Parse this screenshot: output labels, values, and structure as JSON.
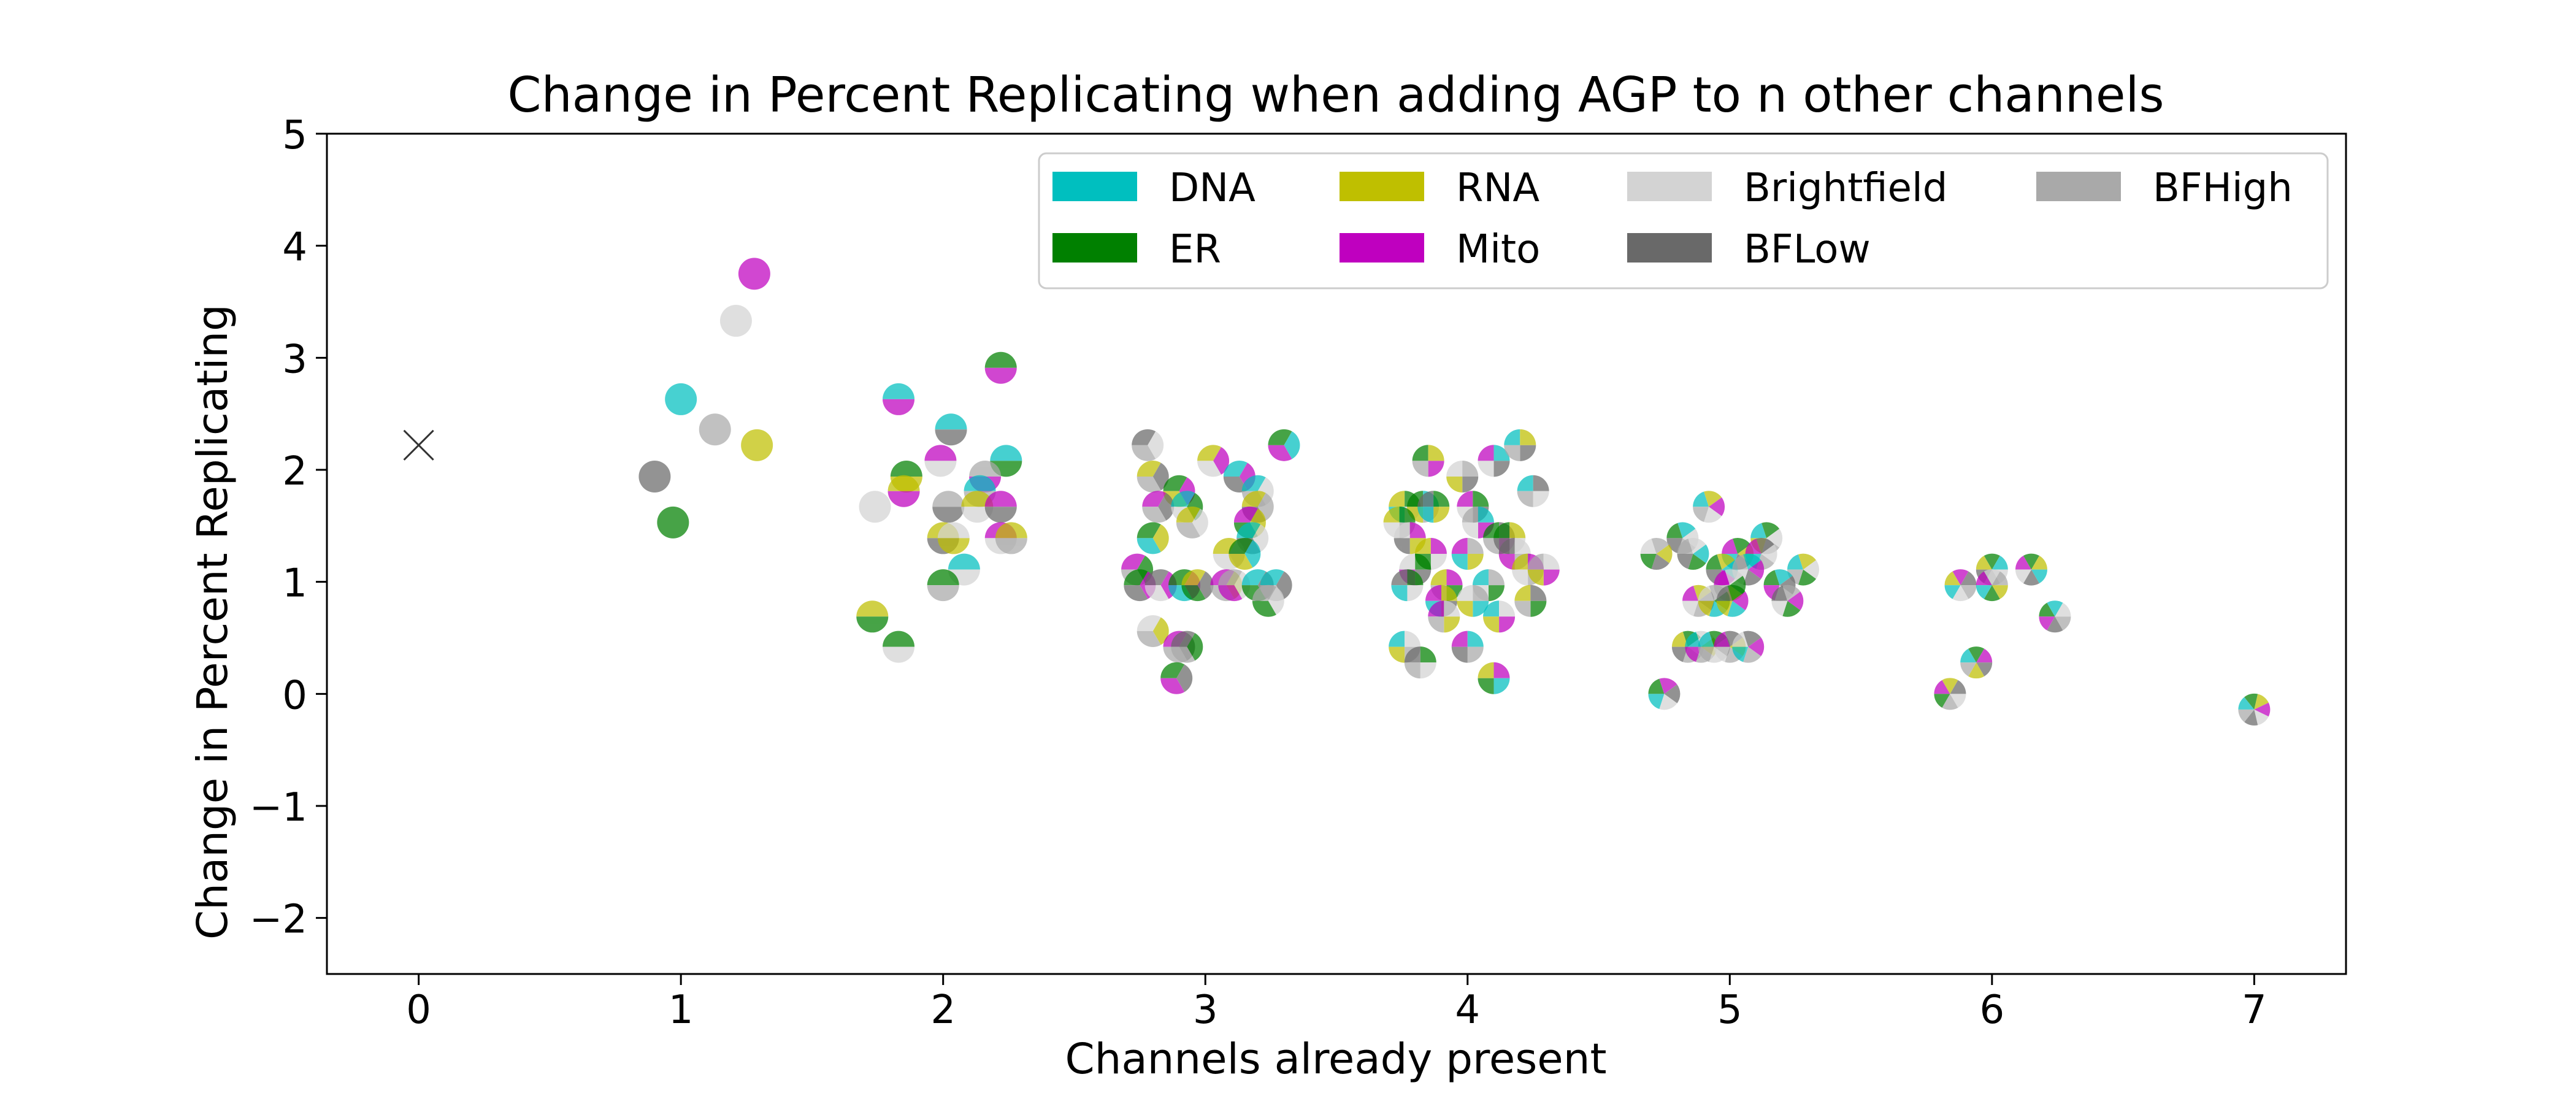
{
  "chart_data": {
    "type": "scatter",
    "title": "Change in Percent Replicating when adding AGP to n other channels",
    "xlabel": "Channels already present",
    "ylabel": "Change in Percent Replicating",
    "xlim": [
      -0.35,
      7.35
    ],
    "ylim": [
      -2.5,
      5
    ],
    "xticks": [
      0,
      1,
      2,
      3,
      4,
      5,
      6,
      7
    ],
    "yticks": [
      -2,
      -1,
      0,
      1,
      2,
      3,
      4,
      5
    ],
    "ytick_labels": [
      "−2",
      "−1",
      "0",
      "1",
      "2",
      "3",
      "4",
      "5"
    ],
    "grid": false,
    "legend_position": "top-right",
    "legend": [
      {
        "name": "DNA",
        "color": "#00bfbf"
      },
      {
        "name": "ER",
        "color": "#008000"
      },
      {
        "name": "RNA",
        "color": "#bfbf00"
      },
      {
        "name": "Mito",
        "color": "#bf00bf"
      },
      {
        "name": "Brightfield",
        "color": "#d3d3d3"
      },
      {
        "name": "BFLow",
        "color": "#696969"
      },
      {
        "name": "BFHigh",
        "color": "#a9a9a9"
      }
    ],
    "baseline_point": {
      "x": 0,
      "y": 2.22,
      "marker": "x"
    },
    "points": [
      {
        "x": 1.0,
        "y": 2.63,
        "channels": [
          "DNA"
        ]
      },
      {
        "x": 1.28,
        "y": 3.75,
        "channels": [
          "Mito"
        ]
      },
      {
        "x": 1.21,
        "y": 3.33,
        "channels": [
          "Brightfield"
        ]
      },
      {
        "x": 1.13,
        "y": 2.36,
        "channels": [
          "BFHigh"
        ]
      },
      {
        "x": 1.29,
        "y": 2.22,
        "channels": [
          "RNA"
        ]
      },
      {
        "x": 0.9,
        "y": 1.94,
        "channels": [
          "BFLow"
        ]
      },
      {
        "x": 0.97,
        "y": 1.53,
        "channels": [
          "ER"
        ]
      },
      {
        "x": 1.83,
        "y": 2.63,
        "channels": [
          "DNA",
          "Mito"
        ]
      },
      {
        "x": 2.22,
        "y": 2.91,
        "channels": [
          "ER",
          "Mito"
        ]
      },
      {
        "x": 2.03,
        "y": 2.36,
        "channels": [
          "DNA",
          "BFLow"
        ]
      },
      {
        "x": 1.99,
        "y": 2.08,
        "channels": [
          "Mito",
          "Brightfield"
        ]
      },
      {
        "x": 2.24,
        "y": 2.08,
        "channels": [
          "DNA",
          "ER"
        ]
      },
      {
        "x": 1.86,
        "y": 1.94,
        "channels": [
          "ER",
          "RNA"
        ]
      },
      {
        "x": 2.16,
        "y": 1.94,
        "channels": [
          "BFHigh",
          "Mito"
        ]
      },
      {
        "x": 2.14,
        "y": 1.81,
        "channels": [
          "DNA",
          "BFHigh"
        ]
      },
      {
        "x": 1.85,
        "y": 1.81,
        "channels": [
          "RNA",
          "Mito"
        ]
      },
      {
        "x": 1.74,
        "y": 1.67,
        "channels": [
          "Brightfield"
        ]
      },
      {
        "x": 2.02,
        "y": 1.67,
        "channels": [
          "BFHigh",
          "BFLow"
        ]
      },
      {
        "x": 2.13,
        "y": 1.67,
        "channels": [
          "RNA",
          "Brightfield"
        ]
      },
      {
        "x": 2.22,
        "y": 1.67,
        "channels": [
          "Mito",
          "BFLow"
        ]
      },
      {
        "x": 2.0,
        "y": 1.39,
        "channels": [
          "RNA",
          "BFLow"
        ]
      },
      {
        "x": 2.04,
        "y": 1.39,
        "channels": [
          "Brightfield",
          "RNA"
        ]
      },
      {
        "x": 2.22,
        "y": 1.39,
        "channels": [
          "Mito",
          "Brightfield"
        ]
      },
      {
        "x": 2.26,
        "y": 1.39,
        "channels": [
          "RNA",
          "BFHigh"
        ]
      },
      {
        "x": 2.08,
        "y": 1.11,
        "channels": [
          "DNA",
          "Brightfield"
        ]
      },
      {
        "x": 2.0,
        "y": 0.97,
        "channels": [
          "ER",
          "BFHigh"
        ]
      },
      {
        "x": 1.73,
        "y": 0.69,
        "channels": [
          "RNA",
          "ER"
        ]
      },
      {
        "x": 1.83,
        "y": 0.42,
        "channels": [
          "ER",
          "Brightfield"
        ]
      },
      {
        "x": 2.78,
        "y": 2.22,
        "channels": [
          "BFLow",
          "Brightfield",
          "BFHigh"
        ]
      },
      {
        "x": 3.3,
        "y": 2.22,
        "channels": [
          "ER",
          "DNA",
          "Mito"
        ]
      },
      {
        "x": 3.03,
        "y": 2.08,
        "channels": [
          "RNA",
          "Mito",
          "Brightfield"
        ]
      },
      {
        "x": 3.13,
        "y": 1.94,
        "channels": [
          "DNA",
          "Mito",
          "BFLow"
        ]
      },
      {
        "x": 2.8,
        "y": 1.94,
        "channels": [
          "RNA",
          "BFLow",
          "BFHigh"
        ]
      },
      {
        "x": 2.9,
        "y": 1.81,
        "channels": [
          "ER",
          "Mito",
          "RNA"
        ]
      },
      {
        "x": 3.2,
        "y": 1.81,
        "channels": [
          "DNA",
          "Brightfield",
          "BFHigh"
        ]
      },
      {
        "x": 2.82,
        "y": 1.67,
        "channels": [
          "Mito",
          "BFLow",
          "BFHigh"
        ]
      },
      {
        "x": 2.93,
        "y": 1.67,
        "channels": [
          "DNA",
          "ER",
          "Brightfield"
        ]
      },
      {
        "x": 3.2,
        "y": 1.67,
        "channels": [
          "RNA",
          "BFHigh",
          "BFLow"
        ]
      },
      {
        "x": 2.95,
        "y": 1.53,
        "channels": [
          "RNA",
          "Brightfield",
          "BFHigh"
        ]
      },
      {
        "x": 3.17,
        "y": 1.53,
        "channels": [
          "Mito",
          "RNA",
          "ER"
        ]
      },
      {
        "x": 2.8,
        "y": 1.39,
        "channels": [
          "ER",
          "RNA",
          "DNA"
        ]
      },
      {
        "x": 3.18,
        "y": 1.39,
        "channels": [
          "DNA",
          "Brightfield",
          "BFLow"
        ]
      },
      {
        "x": 3.09,
        "y": 1.25,
        "channels": [
          "RNA",
          "BFHigh",
          "Brightfield"
        ]
      },
      {
        "x": 3.15,
        "y": 1.25,
        "channels": [
          "ER",
          "DNA",
          "RNA"
        ]
      },
      {
        "x": 2.74,
        "y": 1.11,
        "channels": [
          "Mito",
          "ER",
          "BFHigh"
        ]
      },
      {
        "x": 2.75,
        "y": 0.97,
        "channels": [
          "ER",
          "Mito",
          "BFLow"
        ]
      },
      {
        "x": 2.83,
        "y": 0.97,
        "channels": [
          "BFLow",
          "Mito",
          "Brightfield"
        ]
      },
      {
        "x": 2.92,
        "y": 0.97,
        "channels": [
          "ER",
          "Mito",
          "DNA"
        ]
      },
      {
        "x": 2.97,
        "y": 0.97,
        "channels": [
          "RNA",
          "BFLow",
          "ER"
        ]
      },
      {
        "x": 3.08,
        "y": 0.97,
        "channels": [
          "Mito",
          "RNA",
          "BFHigh"
        ]
      },
      {
        "x": 3.11,
        "y": 0.97,
        "channels": [
          "BFHigh",
          "Brightfield",
          "Mito"
        ]
      },
      {
        "x": 3.2,
        "y": 0.97,
        "channels": [
          "DNA",
          "BFLow",
          "ER"
        ]
      },
      {
        "x": 3.27,
        "y": 0.97,
        "channels": [
          "DNA",
          "BFLow",
          "BFHigh"
        ]
      },
      {
        "x": 3.24,
        "y": 0.83,
        "channels": [
          "BFHigh",
          "Brightfield",
          "ER"
        ]
      },
      {
        "x": 2.8,
        "y": 0.56,
        "channels": [
          "Brightfield",
          "RNA",
          "BFHigh"
        ]
      },
      {
        "x": 2.9,
        "y": 0.42,
        "channels": [
          "Mito",
          "BFLow",
          "BFHigh"
        ]
      },
      {
        "x": 2.93,
        "y": 0.42,
        "channels": [
          "BFLow",
          "ER",
          "BFHigh"
        ]
      },
      {
        "x": 2.89,
        "y": 0.14,
        "channels": [
          "ER",
          "BFLow",
          "Mito"
        ]
      },
      {
        "x": 3.85,
        "y": 2.08,
        "channels": [
          "ER",
          "RNA",
          "Mito",
          "BFHigh"
        ]
      },
      {
        "x": 4.1,
        "y": 2.08,
        "channels": [
          "Mito",
          "DNA",
          "BFLow",
          "Brightfield"
        ]
      },
      {
        "x": 4.2,
        "y": 2.22,
        "channels": [
          "DNA",
          "RNA",
          "BFLow",
          "BFHigh"
        ]
      },
      {
        "x": 3.98,
        "y": 1.94,
        "channels": [
          "Brightfield",
          "BFHigh",
          "BFLow",
          "RNA"
        ]
      },
      {
        "x": 4.25,
        "y": 1.81,
        "channels": [
          "DNA",
          "BFLow",
          "Brightfield",
          "BFHigh"
        ]
      },
      {
        "x": 3.76,
        "y": 1.67,
        "channels": [
          "RNA",
          "ER",
          "Brightfield",
          "DNA"
        ]
      },
      {
        "x": 3.83,
        "y": 1.67,
        "channels": [
          "ER",
          "DNA",
          "BFHigh",
          "RNA"
        ]
      },
      {
        "x": 3.87,
        "y": 1.67,
        "channels": [
          "BFLow",
          "ER",
          "RNA",
          "DNA"
        ]
      },
      {
        "x": 4.02,
        "y": 1.67,
        "channels": [
          "Mito",
          "ER",
          "BFLow",
          "Brightfield"
        ]
      },
      {
        "x": 3.74,
        "y": 1.53,
        "channels": [
          "RNA",
          "ER",
          "BFHigh",
          "Brightfield"
        ]
      },
      {
        "x": 4.04,
        "y": 1.53,
        "channels": [
          "BFHigh",
          "DNA",
          "Mito",
          "Brightfield"
        ]
      },
      {
        "x": 3.78,
        "y": 1.39,
        "channels": [
          "Brightfield",
          "Mito",
          "RNA",
          "BFLow"
        ]
      },
      {
        "x": 4.12,
        "y": 1.39,
        "channels": [
          "ER",
          "BFLow",
          "Mito",
          "BFHigh"
        ]
      },
      {
        "x": 4.16,
        "y": 1.39,
        "channels": [
          "ER",
          "RNA",
          "Brightfield",
          "BFLow"
        ]
      },
      {
        "x": 3.86,
        "y": 1.25,
        "channels": [
          "RNA",
          "Mito",
          "Brightfield",
          "ER"
        ]
      },
      {
        "x": 4.0,
        "y": 1.25,
        "channels": [
          "Mito",
          "BFHigh",
          "RNA",
          "DNA"
        ]
      },
      {
        "x": 4.18,
        "y": 1.25,
        "channels": [
          "BFLow",
          "Brightfield",
          "BFHigh",
          "Mito"
        ]
      },
      {
        "x": 3.8,
        "y": 1.11,
        "channels": [
          "Brightfield",
          "ER",
          "BFLow",
          "Mito"
        ]
      },
      {
        "x": 4.23,
        "y": 1.11,
        "channels": [
          "RNA",
          "Mito",
          "BFHigh",
          "Brightfield"
        ]
      },
      {
        "x": 4.29,
        "y": 1.11,
        "channels": [
          "BFHigh",
          "Brightfield",
          "Mito",
          "RNA"
        ]
      },
      {
        "x": 3.77,
        "y": 0.97,
        "channels": [
          "BFLow",
          "ER",
          "Brightfield",
          "DNA"
        ]
      },
      {
        "x": 3.92,
        "y": 0.97,
        "channels": [
          "RNA",
          "Mito",
          "ER",
          "BFHigh"
        ]
      },
      {
        "x": 4.08,
        "y": 0.97,
        "channels": [
          "DNA",
          "BFHigh",
          "ER",
          "Brightfield"
        ]
      },
      {
        "x": 3.9,
        "y": 0.83,
        "channels": [
          "Mito",
          "RNA",
          "BFLow",
          "DNA"
        ]
      },
      {
        "x": 4.02,
        "y": 0.83,
        "channels": [
          "Brightfield",
          "BFHigh",
          "DNA",
          "RNA"
        ]
      },
      {
        "x": 4.24,
        "y": 0.83,
        "channels": [
          "RNA",
          "BFLow",
          "ER",
          "BFHigh"
        ]
      },
      {
        "x": 3.91,
        "y": 0.69,
        "channels": [
          "Mito",
          "Brightfield",
          "RNA",
          "BFHigh"
        ]
      },
      {
        "x": 4.12,
        "y": 0.69,
        "channels": [
          "DNA",
          "Brightfield",
          "Mito",
          "RNA"
        ]
      },
      {
        "x": 3.76,
        "y": 0.42,
        "channels": [
          "DNA",
          "Brightfield",
          "BFHigh",
          "RNA"
        ]
      },
      {
        "x": 4.0,
        "y": 0.42,
        "channels": [
          "Mito",
          "DNA",
          "BFHigh",
          "BFLow"
        ]
      },
      {
        "x": 3.82,
        "y": 0.28,
        "channels": [
          "BFLow",
          "ER",
          "Brightfield",
          "BFHigh"
        ]
      },
      {
        "x": 4.1,
        "y": 0.14,
        "channels": [
          "RNA",
          "Mito",
          "DNA",
          "ER"
        ]
      },
      {
        "x": 4.92,
        "y": 1.67,
        "channels": [
          "DNA",
          "RNA",
          "Mito",
          "Brightfield",
          "BFHigh"
        ]
      },
      {
        "x": 4.82,
        "y": 1.39,
        "channels": [
          "ER",
          "DNA",
          "Brightfield",
          "BFHigh",
          "BFLow"
        ]
      },
      {
        "x": 5.03,
        "y": 1.25,
        "channels": [
          "Mito",
          "ER",
          "RNA",
          "BFLow",
          "DNA"
        ]
      },
      {
        "x": 5.14,
        "y": 1.39,
        "channels": [
          "DNA",
          "ER",
          "Brightfield",
          "BFHigh",
          "RNA"
        ]
      },
      {
        "x": 4.72,
        "y": 1.25,
        "channels": [
          "Brightfield",
          "BFHigh",
          "RNA",
          "BFLow",
          "ER"
        ]
      },
      {
        "x": 4.86,
        "y": 1.25,
        "channels": [
          "BFHigh",
          "Brightfield",
          "DNA",
          "ER",
          "BFLow"
        ]
      },
      {
        "x": 5.12,
        "y": 1.25,
        "channels": [
          "Mito",
          "BFLow",
          "Brightfield",
          "BFHigh",
          "DNA"
        ]
      },
      {
        "x": 4.97,
        "y": 1.11,
        "channels": [
          "ER",
          "RNA",
          "DNA",
          "Mito",
          "BFLow"
        ]
      },
      {
        "x": 5.07,
        "y": 1.11,
        "channels": [
          "BFHigh",
          "DNA",
          "Mito",
          "BFLow",
          "Brightfield"
        ]
      },
      {
        "x": 5.28,
        "y": 1.11,
        "channels": [
          "DNA",
          "RNA",
          "Brightfield",
          "ER",
          "BFHigh"
        ]
      },
      {
        "x": 5.0,
        "y": 0.97,
        "channels": [
          "Mito",
          "Brightfield",
          "ER",
          "RNA",
          "BFHigh"
        ]
      },
      {
        "x": 5.19,
        "y": 0.97,
        "channels": [
          "ER",
          "DNA",
          "BFLow",
          "Brightfield",
          "Mito"
        ]
      },
      {
        "x": 4.88,
        "y": 0.83,
        "channels": [
          "Mito",
          "RNA",
          "BFLow",
          "BFHigh",
          "Brightfield"
        ]
      },
      {
        "x": 4.94,
        "y": 0.83,
        "channels": [
          "Brightfield",
          "BFHigh",
          "ER",
          "DNA",
          "RNA"
        ]
      },
      {
        "x": 5.01,
        "y": 0.83,
        "channels": [
          "BFLow",
          "ER",
          "Mito",
          "DNA",
          "RNA"
        ]
      },
      {
        "x": 5.22,
        "y": 0.83,
        "channels": [
          "BFLow",
          "BFHigh",
          "Mito",
          "ER",
          "Brightfield"
        ]
      },
      {
        "x": 4.84,
        "y": 0.42,
        "channels": [
          "RNA",
          "ER",
          "Brightfield",
          "BFHigh",
          "BFLow"
        ]
      },
      {
        "x": 4.89,
        "y": 0.42,
        "channels": [
          "DNA",
          "Brightfield",
          "RNA",
          "BFHigh",
          "Mito"
        ]
      },
      {
        "x": 4.94,
        "y": 0.42,
        "channels": [
          "DNA",
          "ER",
          "BFLow",
          "Brightfield",
          "BFHigh"
        ]
      },
      {
        "x": 5.0,
        "y": 0.42,
        "channels": [
          "Mito",
          "BFLow",
          "RNA",
          "BFHigh",
          "Brightfield"
        ]
      },
      {
        "x": 5.07,
        "y": 0.42,
        "channels": [
          "Brightfield",
          "BFLow",
          "Mito",
          "BFHigh",
          "DNA"
        ]
      },
      {
        "x": 4.75,
        "y": 0.0,
        "channels": [
          "ER",
          "Mito",
          "BFLow",
          "Brightfield",
          "DNA"
        ]
      },
      {
        "x": 6.15,
        "y": 1.11,
        "channels": [
          "Mito",
          "ER",
          "RNA",
          "DNA",
          "BFLow",
          "Brightfield"
        ]
      },
      {
        "x": 6.0,
        "y": 1.11,
        "channels": [
          "RNA",
          "ER",
          "DNA",
          "Brightfield",
          "BFHigh",
          "BFLow"
        ]
      },
      {
        "x": 5.88,
        "y": 0.97,
        "channels": [
          "RNA",
          "Mito",
          "BFLow",
          "BFHigh",
          "Brightfield",
          "DNA"
        ]
      },
      {
        "x": 6.0,
        "y": 0.97,
        "channels": [
          "Mito",
          "Brightfield",
          "BFHigh",
          "RNA",
          "ER",
          "DNA"
        ]
      },
      {
        "x": 6.24,
        "y": 0.69,
        "channels": [
          "ER",
          "DNA",
          "Brightfield",
          "BFHigh",
          "BFLow",
          "Mito"
        ]
      },
      {
        "x": 5.94,
        "y": 0.28,
        "channels": [
          "DNA",
          "ER",
          "Mito",
          "BFLow",
          "RNA",
          "BFHigh"
        ]
      },
      {
        "x": 5.84,
        "y": 0.0,
        "channels": [
          "Mito",
          "RNA",
          "BFLow",
          "Brightfield",
          "BFHigh",
          "ER"
        ]
      },
      {
        "x": 7.0,
        "y": -0.14,
        "channels": [
          "DNA",
          "ER",
          "RNA",
          "Mito",
          "Brightfield",
          "BFLow",
          "BFHigh"
        ]
      }
    ]
  }
}
